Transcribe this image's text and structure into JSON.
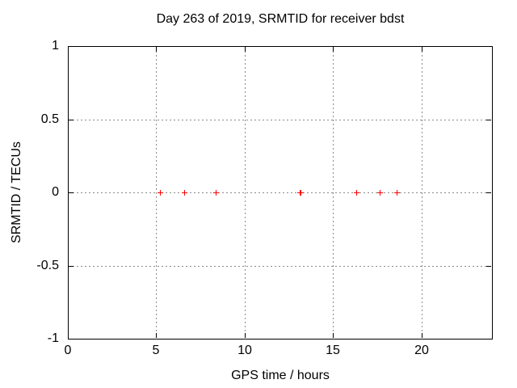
{
  "figure": {
    "background": "#ffffff",
    "frame_color": "#000000",
    "text_color": "#000000",
    "grid_color": "#8c8c8c"
  },
  "chart_data": {
    "type": "scatter",
    "title": "Day 263 of 2019, SRMTID for receiver bdst",
    "xlabel": "GPS time / hours",
    "ylabel": "SRMTID / TECUs",
    "xlim": [
      0,
      24
    ],
    "ylim": [
      -1,
      1
    ],
    "xticks": [
      0,
      5,
      10,
      15,
      20
    ],
    "yticks": [
      -1,
      -0.5,
      0,
      0.5,
      1
    ],
    "grid": "dashed-major-both-axes",
    "legend_position": "none",
    "marker_style": "plus",
    "series": [
      {
        "color": "#ff0000",
        "points": [
          [
            5.23,
            0
          ],
          [
            6.6,
            0
          ],
          [
            8.38,
            0
          ],
          [
            13.16,
            0
          ],
          [
            13.21,
            0
          ],
          [
            16.35,
            0
          ],
          [
            17.68,
            0
          ],
          [
            18.64,
            0
          ]
        ]
      }
    ]
  }
}
